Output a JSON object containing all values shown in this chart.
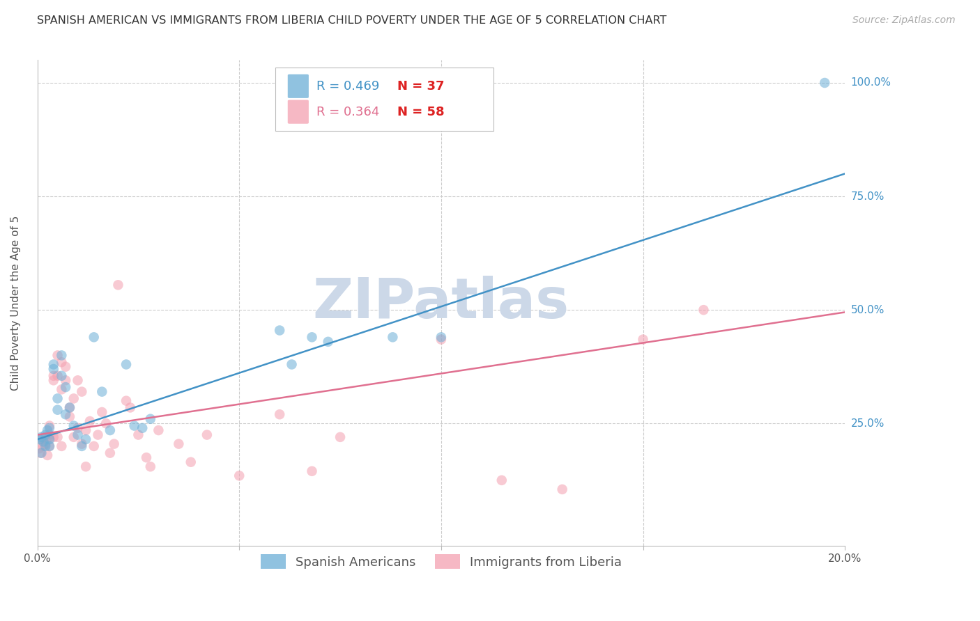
{
  "title": "SPANISH AMERICAN VS IMMIGRANTS FROM LIBERIA CHILD POVERTY UNDER THE AGE OF 5 CORRELATION CHART",
  "source": "Source: ZipAtlas.com",
  "ylabel": "Child Poverty Under the Age of 5",
  "watermark": "ZIPatlas",
  "blue_R": 0.469,
  "blue_N": 37,
  "pink_R": 0.364,
  "pink_N": 58,
  "blue_color": "#6baed6",
  "pink_color": "#f4a0b0",
  "blue_line_color": "#4292c6",
  "pink_line_color": "#e07090",
  "xlim": [
    0.0,
    0.2
  ],
  "ylim": [
    -0.02,
    1.05
  ],
  "blue_scatter_x": [
    0.0005,
    0.001,
    0.001,
    0.0015,
    0.002,
    0.002,
    0.0025,
    0.003,
    0.003,
    0.003,
    0.004,
    0.004,
    0.005,
    0.005,
    0.006,
    0.006,
    0.007,
    0.007,
    0.008,
    0.009,
    0.01,
    0.011,
    0.012,
    0.014,
    0.016,
    0.018,
    0.022,
    0.024,
    0.026,
    0.028,
    0.06,
    0.063,
    0.068,
    0.072,
    0.088,
    0.1,
    0.195
  ],
  "blue_scatter_y": [
    0.215,
    0.185,
    0.22,
    0.21,
    0.225,
    0.2,
    0.235,
    0.24,
    0.215,
    0.2,
    0.38,
    0.37,
    0.305,
    0.28,
    0.355,
    0.4,
    0.33,
    0.27,
    0.285,
    0.245,
    0.225,
    0.2,
    0.215,
    0.44,
    0.32,
    0.235,
    0.38,
    0.245,
    0.24,
    0.26,
    0.455,
    0.38,
    0.44,
    0.43,
    0.44,
    0.44,
    1.0
  ],
  "pink_scatter_x": [
    0.0005,
    0.0008,
    0.001,
    0.0015,
    0.002,
    0.002,
    0.0025,
    0.003,
    0.003,
    0.003,
    0.003,
    0.004,
    0.004,
    0.004,
    0.005,
    0.005,
    0.005,
    0.006,
    0.006,
    0.006,
    0.007,
    0.007,
    0.008,
    0.008,
    0.009,
    0.009,
    0.01,
    0.01,
    0.011,
    0.011,
    0.012,
    0.012,
    0.013,
    0.014,
    0.015,
    0.016,
    0.017,
    0.018,
    0.019,
    0.02,
    0.022,
    0.023,
    0.025,
    0.027,
    0.028,
    0.03,
    0.035,
    0.038,
    0.042,
    0.05,
    0.06,
    0.068,
    0.075,
    0.1,
    0.115,
    0.13,
    0.15,
    0.165
  ],
  "pink_scatter_y": [
    0.195,
    0.185,
    0.215,
    0.2,
    0.205,
    0.22,
    0.18,
    0.245,
    0.2,
    0.225,
    0.22,
    0.345,
    0.355,
    0.22,
    0.4,
    0.355,
    0.22,
    0.385,
    0.325,
    0.2,
    0.345,
    0.375,
    0.265,
    0.285,
    0.305,
    0.22,
    0.345,
    0.24,
    0.32,
    0.205,
    0.235,
    0.155,
    0.255,
    0.2,
    0.225,
    0.275,
    0.25,
    0.185,
    0.205,
    0.555,
    0.3,
    0.285,
    0.225,
    0.175,
    0.155,
    0.235,
    0.205,
    0.165,
    0.225,
    0.135,
    0.27,
    0.145,
    0.22,
    0.435,
    0.125,
    0.105,
    0.435,
    0.5
  ],
  "blue_trend_x": [
    0.0,
    0.2
  ],
  "blue_trend_y": [
    0.215,
    0.8
  ],
  "pink_trend_x": [
    0.0,
    0.2
  ],
  "pink_trend_y": [
    0.225,
    0.495
  ],
  "grid_color": "#cccccc",
  "background_color": "#ffffff",
  "watermark_color": "#ccd8e8",
  "title_fontsize": 11.5,
  "axis_label_fontsize": 11,
  "tick_fontsize": 11,
  "legend_fontsize": 13,
  "source_fontsize": 10,
  "scatter_size": 110,
  "scatter_alpha": 0.55,
  "line_width": 1.8
}
